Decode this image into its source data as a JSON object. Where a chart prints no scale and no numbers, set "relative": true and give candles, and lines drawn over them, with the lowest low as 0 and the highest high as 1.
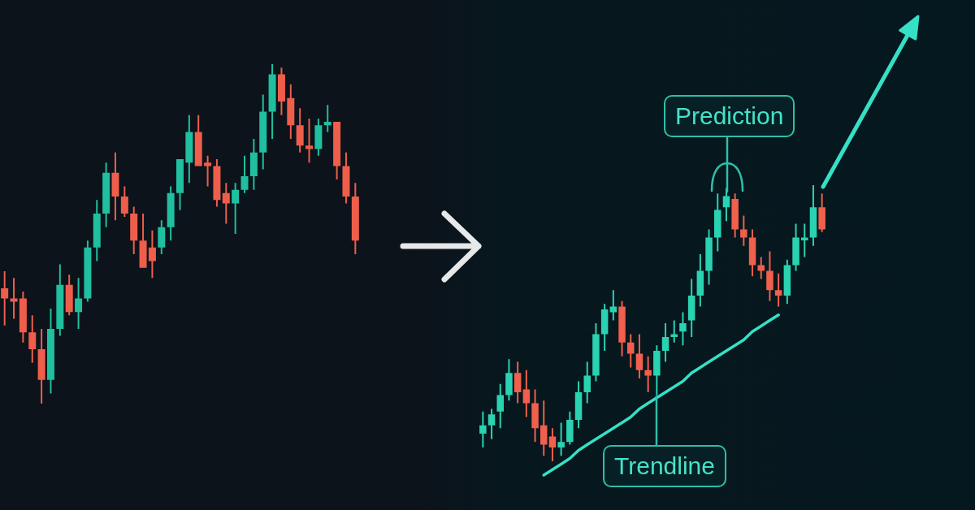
{
  "chart_data": [
    {
      "type": "candlestick",
      "relative": true,
      "tick_labels": false,
      "categories": [
        null,
        null,
        null,
        null,
        null,
        null,
        null,
        null,
        null,
        null,
        null,
        null,
        null,
        null,
        null,
        null,
        null,
        null,
        null,
        null,
        null,
        null,
        null,
        null,
        null,
        null,
        null,
        null,
        null,
        null,
        null,
        null,
        null,
        null,
        null,
        null,
        null,
        null,
        null
      ],
      "ohlc": [
        [
          0.34,
          0.39,
          0.23,
          0.31
        ],
        [
          0.31,
          0.37,
          0.25,
          0.3
        ],
        [
          0.31,
          0.33,
          0.18,
          0.21
        ],
        [
          0.21,
          0.26,
          0.12,
          0.16
        ],
        [
          0.16,
          0.22,
          0,
          0.07
        ],
        [
          0.07,
          0.28,
          0.03,
          0.22
        ],
        [
          0.22,
          0.41,
          0.2,
          0.35
        ],
        [
          0.35,
          0.38,
          0.26,
          0.27
        ],
        [
          0.27,
          0.37,
          0.22,
          0.31
        ],
        [
          0.31,
          0.48,
          0.3,
          0.46
        ],
        [
          0.46,
          0.6,
          0.42,
          0.56
        ],
        [
          0.56,
          0.71,
          0.52,
          0.68
        ],
        [
          0.68,
          0.74,
          0.54,
          0.61
        ],
        [
          0.61,
          0.64,
          0.55,
          0.56
        ],
        [
          0.56,
          0.58,
          0.44,
          0.48
        ],
        [
          0.48,
          0.56,
          0.4,
          0.4
        ],
        [
          0.46,
          0.51,
          0.37,
          0.42
        ],
        [
          0.46,
          0.54,
          0.44,
          0.52
        ],
        [
          0.52,
          0.64,
          0.48,
          0.62
        ],
        [
          0.62,
          0.72,
          0.57,
          0.72
        ],
        [
          0.71,
          0.85,
          0.65,
          0.8
        ],
        [
          0.8,
          0.85,
          0.7,
          0.7
        ],
        [
          0.71,
          0.73,
          0.64,
          0.7
        ],
        [
          0.7,
          0.72,
          0.58,
          0.6
        ],
        [
          0.62,
          0.65,
          0.53,
          0.59
        ],
        [
          0.59,
          0.65,
          0.5,
          0.63
        ],
        [
          0.63,
          0.73,
          0.62,
          0.67
        ],
        [
          0.67,
          0.78,
          0.63,
          0.74
        ],
        [
          0.74,
          0.91,
          0.69,
          0.86
        ],
        [
          0.86,
          1,
          0.78,
          0.97
        ],
        [
          0.97,
          0.99,
          0.85,
          0.89
        ],
        [
          0.9,
          0.94,
          0.78,
          0.82
        ],
        [
          0.82,
          0.87,
          0.74,
          0.76
        ],
        [
          0.76,
          0.84,
          0.71,
          0.75
        ],
        [
          0.75,
          0.84,
          0.73,
          0.82
        ],
        [
          0.82,
          0.88,
          0.8,
          0.83
        ],
        [
          0.83,
          0.83,
          0.66,
          0.7
        ],
        [
          0.7,
          0.74,
          0.59,
          0.61
        ],
        [
          0.61,
          0.65,
          0.44,
          0.48
        ]
      ],
      "colors": [
        "#ee5e4b",
        "#ee5e4b",
        "#ee5e4b",
        "#ee5e4b",
        "#ee5e4b",
        "#1fbf9f",
        "#1fbf9f",
        "#ee5e4b",
        "#1fbf9f",
        "#1fbf9f",
        "#1fbf9f",
        "#1fbf9f",
        "#ee5e4b",
        "#ee5e4b",
        "#ee5e4b",
        "#ee5e4b",
        "#ee5e4b",
        "#1fbf9f",
        "#1fbf9f",
        "#1fbf9f",
        "#1fbf9f",
        "#ee5e4b",
        "#ee5e4b",
        "#ee5e4b",
        "#ee5e4b",
        "#1fbf9f",
        "#1fbf9f",
        "#1fbf9f",
        "#1fbf9f",
        "#1fbf9f",
        "#ee5e4b",
        "#ee5e4b",
        "#ee5e4b",
        "#ee5e4b",
        "#1fbf9f",
        "#1fbf9f",
        "#ee5e4b",
        "#ee5e4b",
        "#ee5e4b"
      ]
    },
    {
      "type": "candlestick",
      "relative": true,
      "tick_labels": false,
      "categories": [
        null,
        null,
        null,
        null,
        null,
        null,
        null,
        null,
        null,
        null,
        null,
        null,
        null,
        null,
        null,
        null,
        null,
        null,
        null,
        null,
        null,
        null,
        null,
        null,
        null,
        null,
        null,
        null,
        null,
        null,
        null,
        null,
        null,
        null,
        null,
        null,
        null,
        null,
        null,
        null
      ],
      "ohlc": [
        [
          0.1,
          0.18,
          0.05,
          0.13
        ],
        [
          0.13,
          0.19,
          0.08,
          0.17
        ],
        [
          0.18,
          0.28,
          0.12,
          0.24
        ],
        [
          0.24,
          0.37,
          0.22,
          0.32
        ],
        [
          0.32,
          0.36,
          0.21,
          0.25
        ],
        [
          0.26,
          0.33,
          0.16,
          0.21
        ],
        [
          0.21,
          0.26,
          0.07,
          0.12
        ],
        [
          0.13,
          0.22,
          0.02,
          0.06
        ],
        [
          0.09,
          0.12,
          0,
          0.05
        ],
        [
          0.05,
          0.14,
          0.02,
          0.07
        ],
        [
          0.07,
          0.18,
          0.06,
          0.15
        ],
        [
          0.15,
          0.29,
          0.12,
          0.25
        ],
        [
          0.25,
          0.36,
          0.21,
          0.31
        ],
        [
          0.31,
          0.5,
          0.29,
          0.46
        ],
        [
          0.46,
          0.57,
          0.4,
          0.55
        ],
        [
          0.54,
          0.62,
          0.51,
          0.56
        ],
        [
          0.56,
          0.58,
          0.38,
          0.43
        ],
        [
          0.43,
          0.46,
          0.34,
          0.39
        ],
        [
          0.39,
          0.46,
          0.3,
          0.33
        ],
        [
          0.33,
          0.38,
          0.25,
          0.31
        ],
        [
          0.31,
          0.42,
          0.24,
          0.4
        ],
        [
          0.4,
          0.5,
          0.36,
          0.45
        ],
        [
          0.45,
          0.51,
          0.43,
          0.46
        ],
        [
          0.47,
          0.54,
          0.42,
          0.5
        ],
        [
          0.51,
          0.66,
          0.45,
          0.6
        ],
        [
          0.6,
          0.75,
          0.56,
          0.69
        ],
        [
          0.69,
          0.84,
          0.64,
          0.81
        ],
        [
          0.81,
          0.97,
          0.76,
          0.91
        ],
        [
          0.92,
          0.99,
          0.87,
          0.96
        ],
        [
          0.95,
          0.97,
          0.81,
          0.84
        ],
        [
          0.84,
          0.89,
          0.78,
          0.81
        ],
        [
          0.81,
          0.84,
          0.67,
          0.71
        ],
        [
          0.71,
          0.74,
          0.66,
          0.69
        ],
        [
          0.69,
          0.76,
          0.58,
          0.62
        ],
        [
          0.62,
          0.68,
          0.56,
          0.6
        ],
        [
          0.6,
          0.73,
          0.57,
          0.71
        ],
        [
          0.71,
          0.86,
          0.69,
          0.81
        ],
        [
          0.8,
          0.86,
          0.74,
          0.81
        ],
        [
          0.81,
          1,
          0.78,
          0.92
        ],
        [
          0.92,
          0.97,
          0.83,
          0.84
        ]
      ],
      "colors": [
        "#29d3b2",
        "#29d3b2",
        "#29d3b2",
        "#29d3b2",
        "#f0604c",
        "#f0604c",
        "#f0604c",
        "#f0604c",
        "#f0604c",
        "#29d3b2",
        "#29d3b2",
        "#29d3b2",
        "#29d3b2",
        "#29d3b2",
        "#29d3b2",
        "#29d3b2",
        "#f0604c",
        "#f0604c",
        "#f0604c",
        "#f0604c",
        "#29d3b2",
        "#29d3b2",
        "#29d3b2",
        "#29d3b2",
        "#29d3b2",
        "#29d3b2",
        "#29d3b2",
        "#29d3b2",
        "#29d3b2",
        "#f0604c",
        "#f0604c",
        "#f0604c",
        "#f0604c",
        "#f0604c",
        "#f0604c",
        "#29d3b2",
        "#29d3b2",
        "#29d3b2",
        "#29d3b2",
        "#f0604c"
      ],
      "series": [
        {
          "type": "line",
          "color": "#35e0c6",
          "values": [
            null,
            null,
            null,
            null,
            null,
            null,
            null,
            -0.05,
            -0.03,
            -0.01,
            0.01,
            0.04,
            0.06,
            0.08,
            0.1,
            0.12,
            0.14,
            0.16,
            0.19,
            0.21,
            0.23,
            0.25,
            0.27,
            0.29,
            0.32,
            0.34,
            0.36,
            0.38,
            0.4,
            0.42,
            0.44,
            0.47,
            0.49,
            0.51,
            0.53,
            null,
            null,
            null,
            null,
            null
          ]
        }
      ],
      "annotations": [
        "Prediction",
        "Trendline"
      ]
    }
  ]
}
